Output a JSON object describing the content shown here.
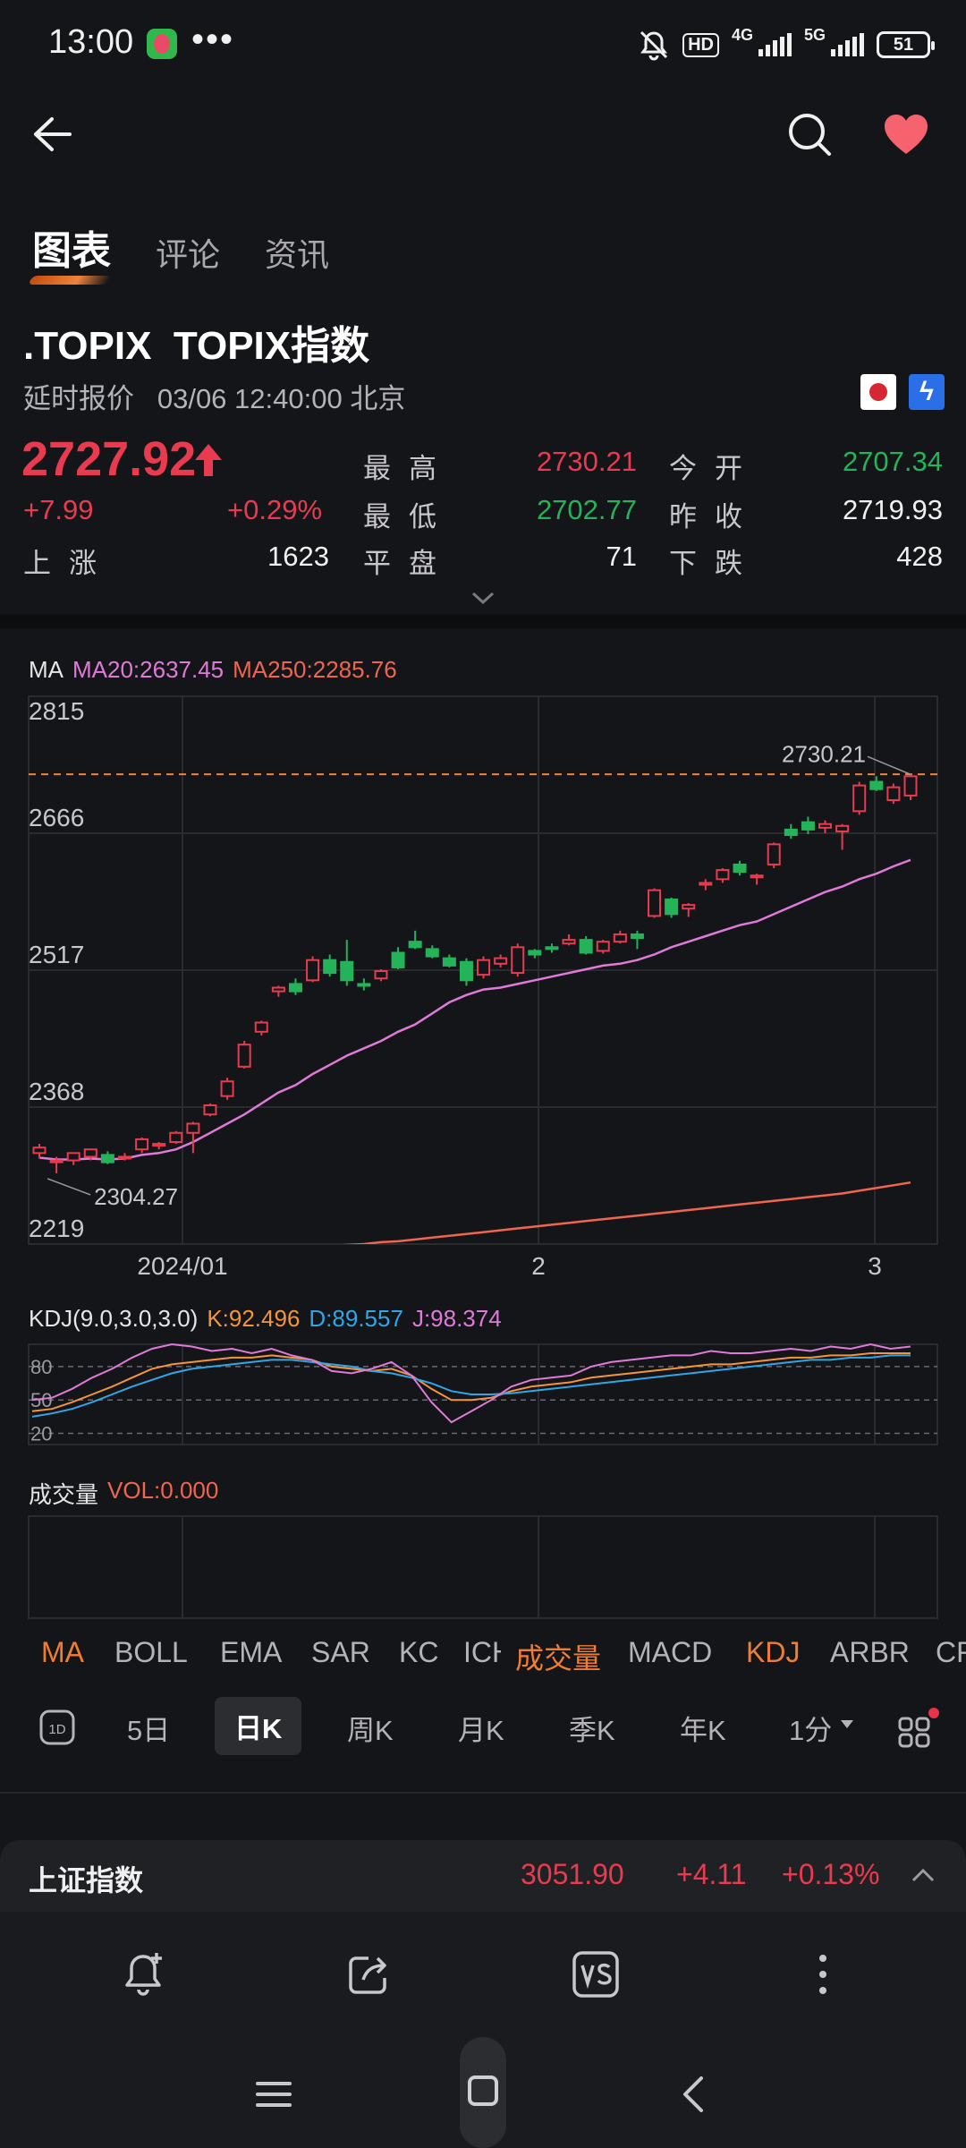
{
  "status_bar": {
    "time": "13:00",
    "more": "•••",
    "hd": "HD",
    "net1": "4G",
    "net2": "5G",
    "battery": "51"
  },
  "topbar": {
    "back_icon": "back-arrow-icon",
    "search_icon": "search-icon",
    "favorite_icon": "heart-icon"
  },
  "tabs": [
    {
      "label": "图表"
    },
    {
      "label": "评论"
    },
    {
      "label": "资讯"
    }
  ],
  "stock": {
    "code": ".TOPIX",
    "name": "TOPIX指数",
    "quote_type": "延时报价",
    "datetime": "03/06 12:40:00 北京",
    "price": "2727.92",
    "change": "+7.99",
    "change_pct": "+0.29%",
    "quotes": {
      "high_label": "最高",
      "high": "2730.21",
      "open_label": "今开",
      "open": "2707.34",
      "low_label": "最低",
      "low": "2702.77",
      "prev_close_label": "昨收",
      "prev_close": "2719.93",
      "rise_label": "上涨",
      "rise": "1623",
      "flat_label": "平盘",
      "flat": "71",
      "fall_label": "下跌",
      "fall": "428"
    }
  },
  "chart_data": [
    {
      "type": "candlestick",
      "title": "MA",
      "legend": [
        "MA20:2637.45",
        "MA250:2285.76"
      ],
      "y_ticks": [
        "2815",
        "2666",
        "2517",
        "2368",
        "2219"
      ],
      "x_ticks": [
        "2024/01",
        "2",
        "3"
      ],
      "ylim": [
        2219,
        2815
      ],
      "max_marker": "2730.21",
      "min_marker": "2304.27",
      "candles": [
        [
          2318,
          2328,
          2312,
          2324
        ],
        [
          2308,
          2314,
          2296,
          2310
        ],
        [
          2310,
          2316,
          2305,
          2318
        ],
        [
          2314,
          2320,
          2310,
          2322
        ],
        [
          2316,
          2320,
          2306,
          2308
        ],
        [
          2314,
          2318,
          2310,
          2314
        ],
        [
          2322,
          2335,
          2318,
          2333
        ],
        [
          2326,
          2330,
          2322,
          2328
        ],
        [
          2330,
          2342,
          2328,
          2340
        ],
        [
          2340,
          2352,
          2318,
          2350
        ],
        [
          2360,
          2372,
          2358,
          2370
        ],
        [
          2380,
          2400,
          2376,
          2396
        ],
        [
          2412,
          2440,
          2410,
          2436
        ],
        [
          2450,
          2462,
          2446,
          2460
        ],
        [
          2494,
          2500,
          2488,
          2498
        ],
        [
          2502,
          2508,
          2490,
          2494
        ],
        [
          2506,
          2532,
          2504,
          2528
        ],
        [
          2528,
          2534,
          2510,
          2514
        ],
        [
          2526,
          2550,
          2500,
          2506
        ],
        [
          2502,
          2508,
          2495,
          2500
        ],
        [
          2508,
          2518,
          2505,
          2516
        ],
        [
          2536,
          2542,
          2518,
          2520
        ],
        [
          2548,
          2560,
          2540,
          2542
        ],
        [
          2540,
          2544,
          2530,
          2532
        ],
        [
          2530,
          2534,
          2520,
          2522
        ],
        [
          2526,
          2530,
          2500,
          2506
        ],
        [
          2512,
          2532,
          2508,
          2528
        ],
        [
          2524,
          2534,
          2520,
          2530
        ],
        [
          2514,
          2546,
          2510,
          2542
        ],
        [
          2538,
          2540,
          2530,
          2534
        ],
        [
          2542,
          2546,
          2536,
          2540
        ],
        [
          2546,
          2556,
          2544,
          2550
        ],
        [
          2550,
          2554,
          2534,
          2536
        ],
        [
          2538,
          2550,
          2535,
          2548
        ],
        [
          2548,
          2560,
          2546,
          2556
        ],
        [
          2556,
          2560,
          2540,
          2552
        ],
        [
          2576,
          2606,
          2574,
          2604
        ],
        [
          2594,
          2596,
          2574,
          2578
        ],
        [
          2584,
          2590,
          2575,
          2588
        ],
        [
          2610,
          2616,
          2604,
          2612
        ],
        [
          2616,
          2628,
          2612,
          2626
        ],
        [
          2632,
          2636,
          2620,
          2624
        ],
        [
          2618,
          2622,
          2610,
          2620
        ],
        [
          2632,
          2656,
          2628,
          2654
        ],
        [
          2670,
          2676,
          2660,
          2664
        ],
        [
          2678,
          2684,
          2665,
          2670
        ],
        [
          2672,
          2680,
          2666,
          2676
        ],
        [
          2668,
          2676,
          2648,
          2674
        ],
        [
          2690,
          2722,
          2686,
          2718
        ],
        [
          2722,
          2728,
          2712,
          2714
        ],
        [
          2702,
          2720,
          2698,
          2716
        ],
        [
          2707,
          2730,
          2702,
          2728
        ]
      ],
      "ma20": [
        2313,
        2311,
        2311,
        2312,
        2311,
        2312,
        2316,
        2318,
        2322,
        2330,
        2340,
        2350,
        2360,
        2372,
        2384,
        2392,
        2404,
        2414,
        2424,
        2432,
        2440,
        2450,
        2458,
        2470,
        2482,
        2490,
        2496,
        2498,
        2502,
        2506,
        2510,
        2514,
        2518,
        2522,
        2524,
        2528,
        2534,
        2542,
        2548,
        2554,
        2560,
        2566,
        2570,
        2578,
        2586,
        2594,
        2602,
        2608,
        2616,
        2622,
        2630,
        2637
      ],
      "ma250": [
        2199,
        2200,
        2201,
        2202,
        2203,
        2204,
        2205,
        2206,
        2207,
        2208,
        2209,
        2210,
        2211,
        2212,
        2213,
        2214,
        2216,
        2217,
        2218,
        2219,
        2221,
        2222,
        2224,
        2226,
        2228,
        2230,
        2232,
        2234,
        2236,
        2238,
        2240,
        2242,
        2244,
        2246,
        2248,
        2250,
        2252,
        2254,
        2256,
        2258,
        2260,
        2262,
        2264,
        2266,
        2268,
        2270,
        2272,
        2274,
        2277,
        2280,
        2283,
        2286
      ]
    },
    {
      "type": "line",
      "title": "KDJ(9.0,3.0,3.0)",
      "legend": [
        "K:92.496",
        "D:89.557",
        "J:98.374"
      ],
      "y_ticks": [
        "80",
        "50",
        "20"
      ],
      "ylim": [
        10,
        100
      ],
      "series": [
        {
          "name": "K",
          "values": [
            40,
            42,
            48,
            55,
            62,
            70,
            78,
            82,
            84,
            86,
            88,
            88,
            90,
            88,
            86,
            80,
            78,
            76,
            78,
            72,
            60,
            50,
            50,
            52,
            58,
            62,
            64,
            66,
            70,
            72,
            74,
            76,
            78,
            80,
            82,
            82,
            84,
            86,
            88,
            88,
            90,
            90,
            92,
            92,
            92
          ]
        },
        {
          "name": "D",
          "values": [
            35,
            38,
            42,
            48,
            55,
            62,
            68,
            74,
            78,
            80,
            82,
            84,
            86,
            86,
            84,
            82,
            80,
            76,
            74,
            70,
            65,
            58,
            55,
            55,
            56,
            58,
            60,
            62,
            64,
            66,
            68,
            70,
            72,
            74,
            76,
            78,
            80,
            82,
            84,
            86,
            86,
            88,
            88,
            90,
            90
          ]
        },
        {
          "name": "J",
          "values": [
            50,
            52,
            60,
            70,
            78,
            88,
            96,
            100,
            98,
            94,
            96,
            92,
            96,
            90,
            86,
            76,
            74,
            78,
            84,
            72,
            48,
            30,
            40,
            50,
            62,
            68,
            70,
            72,
            80,
            84,
            86,
            88,
            90,
            90,
            94,
            92,
            92,
            94,
            96,
            94,
            98,
            96,
            100,
            96,
            98
          ]
        }
      ]
    },
    {
      "type": "bar",
      "title": "成交量",
      "legend": [
        "VOL:0.000"
      ],
      "values": []
    }
  ],
  "indicators": [
    "MA",
    "BOLL",
    "EMA",
    "SAR",
    "KC",
    "ICH",
    "成交量",
    "MACD",
    "KDJ",
    "ARBR",
    "CR"
  ],
  "periods": [
    "5日",
    "日K",
    "周K",
    "月K",
    "季K",
    "年K",
    "1分"
  ],
  "period_1d_icon": "1D",
  "index_bar": {
    "name": "上证指数",
    "value": "3051.90",
    "change": "+4.11",
    "change_pct": "+0.13%"
  },
  "colors": {
    "up": "#e83b50",
    "down": "#25b35a",
    "ma20": "#e07ad8",
    "ma250": "#f0654f",
    "accent": "#f07d32"
  }
}
